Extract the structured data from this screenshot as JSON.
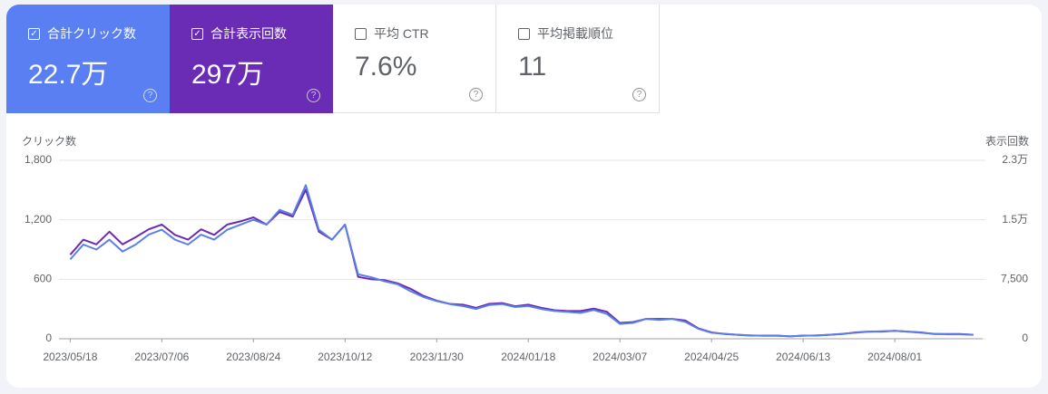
{
  "cards": [
    {
      "label": "合計クリック数",
      "value": "22.7万"
    },
    {
      "label": "合計表示回数",
      "value": "297万"
    },
    {
      "label": "平均 CTR",
      "value": "7.6%"
    },
    {
      "label": "平均掲載順位",
      "value": "11"
    }
  ],
  "chart_data": {
    "type": "line",
    "y_label": "クリック数",
    "y2_label": "表示回数",
    "x": [
      "2023/05/18",
      "2023/05/25",
      "2023/06/01",
      "2023/06/08",
      "2023/06/15",
      "2023/06/22",
      "2023/06/29",
      "2023/07/06",
      "2023/07/13",
      "2023/07/20",
      "2023/07/27",
      "2023/08/03",
      "2023/08/10",
      "2023/08/17",
      "2023/08/24",
      "2023/08/31",
      "2023/09/07",
      "2023/09/14",
      "2023/09/21",
      "2023/09/28",
      "2023/10/05",
      "2023/10/12",
      "2023/10/19",
      "2023/10/26",
      "2023/11/02",
      "2023/11/09",
      "2023/11/16",
      "2023/11/23",
      "2023/11/30",
      "2023/12/07",
      "2023/12/14",
      "2023/12/21",
      "2023/12/28",
      "2024/01/04",
      "2024/01/11",
      "2024/01/18",
      "2024/01/25",
      "2024/02/01",
      "2024/02/08",
      "2024/02/15",
      "2024/02/22",
      "2024/02/29",
      "2024/03/07",
      "2024/03/14",
      "2024/03/21",
      "2024/03/28",
      "2024/04/04",
      "2024/04/11",
      "2024/04/18",
      "2024/04/25",
      "2024/05/02",
      "2024/05/09",
      "2024/05/16",
      "2024/05/23",
      "2024/05/30",
      "2024/06/06",
      "2024/06/13",
      "2024/06/20",
      "2024/06/27",
      "2024/07/04",
      "2024/07/11",
      "2024/07/18",
      "2024/07/25",
      "2024/08/01",
      "2024/08/08",
      "2024/08/15",
      "2024/08/22",
      "2024/08/29",
      "2024/09/05",
      "2024/09/12"
    ],
    "xlim": [
      "2023/05/12",
      "2024/09/17"
    ],
    "xticks": [
      "2023/05/18",
      "2023/07/06",
      "2023/08/24",
      "2023/10/12",
      "2023/11/30",
      "2024/01/18",
      "2024/03/07",
      "2024/04/25",
      "2024/06/13",
      "2024/08/01"
    ],
    "ylim": [
      0,
      1800
    ],
    "yticks": [
      0,
      600,
      {
        "value": 1200,
        "label": "1,200"
      },
      {
        "value": 1800,
        "label": "1,800"
      }
    ],
    "y2lim": [
      0,
      22500
    ],
    "y2ticks": [
      0,
      {
        "value": 7500,
        "label": "7,500"
      },
      {
        "value": 15000,
        "label": "1.5万"
      },
      {
        "value": 22500,
        "label": "2.3万"
      }
    ],
    "grid": true,
    "series": [
      {
        "name": "合計表示回数",
        "color": "#6a2bb0",
        "axis": "y2",
        "values": [
          10600,
          12500,
          11900,
          13500,
          11900,
          12800,
          13800,
          14400,
          13100,
          12500,
          13800,
          13100,
          14400,
          14800,
          15300,
          14400,
          16000,
          15400,
          18800,
          13500,
          12500,
          14400,
          7800,
          7500,
          7400,
          7000,
          6300,
          5400,
          4800,
          4400,
          4300,
          3900,
          4400,
          4500,
          4100,
          4300,
          3900,
          3600,
          3500,
          3500,
          3800,
          3400,
          2000,
          2100,
          2500,
          2500,
          2500,
          2300,
          1300,
          800,
          600,
          500,
          400,
          400,
          400,
          300,
          400,
          400,
          500,
          600,
          800,
          900,
          900,
          1000,
          900,
          800,
          600,
          600,
          600,
          500
        ]
      },
      {
        "name": "合計クリック数",
        "color": "#5a7fe8",
        "values": [
          800,
          950,
          900,
          1000,
          880,
          950,
          1050,
          1100,
          1000,
          950,
          1050,
          1000,
          1100,
          1150,
          1200,
          1150,
          1300,
          1250,
          1550,
          1100,
          1000,
          1150,
          650,
          620,
          580,
          550,
          480,
          420,
          380,
          350,
          330,
          300,
          340,
          350,
          320,
          330,
          300,
          280,
          270,
          260,
          290,
          250,
          150,
          160,
          200,
          190,
          200,
          170,
          100,
          60,
          50,
          40,
          35,
          30,
          30,
          25,
          30,
          35,
          40,
          50,
          60,
          70,
          75,
          80,
          70,
          60,
          50,
          45,
          45,
          40
        ]
      }
    ]
  }
}
